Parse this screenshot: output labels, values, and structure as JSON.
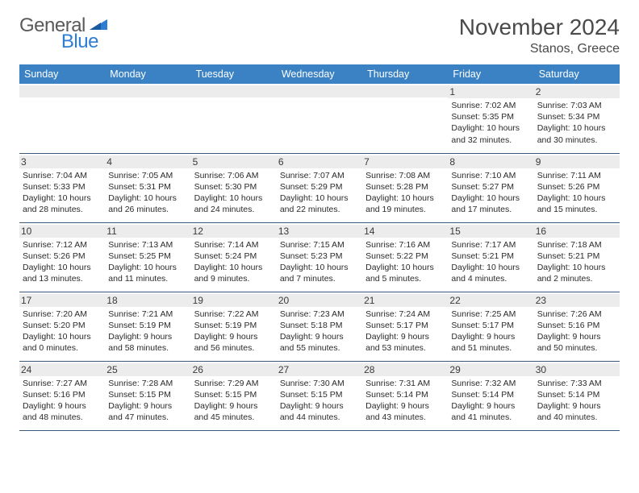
{
  "logo": {
    "text1": "General",
    "text2": "Blue"
  },
  "title": "November 2024",
  "location": "Stanos, Greece",
  "colors": {
    "header_bg": "#3b82c4",
    "header_fg": "#ffffff",
    "daynum_bg": "#ececec",
    "week_border": "#3b5a7a",
    "logo_gray": "#5a5a5a",
    "logo_blue": "#2d7dd2"
  },
  "weekdays": [
    "Sunday",
    "Monday",
    "Tuesday",
    "Wednesday",
    "Thursday",
    "Friday",
    "Saturday"
  ],
  "weeks": [
    [
      null,
      null,
      null,
      null,
      null,
      {
        "d": "1",
        "sr": "Sunrise: 7:02 AM",
        "ss": "Sunset: 5:35 PM",
        "dl1": "Daylight: 10 hours",
        "dl2": "and 32 minutes."
      },
      {
        "d": "2",
        "sr": "Sunrise: 7:03 AM",
        "ss": "Sunset: 5:34 PM",
        "dl1": "Daylight: 10 hours",
        "dl2": "and 30 minutes."
      }
    ],
    [
      {
        "d": "3",
        "sr": "Sunrise: 7:04 AM",
        "ss": "Sunset: 5:33 PM",
        "dl1": "Daylight: 10 hours",
        "dl2": "and 28 minutes."
      },
      {
        "d": "4",
        "sr": "Sunrise: 7:05 AM",
        "ss": "Sunset: 5:31 PM",
        "dl1": "Daylight: 10 hours",
        "dl2": "and 26 minutes."
      },
      {
        "d": "5",
        "sr": "Sunrise: 7:06 AM",
        "ss": "Sunset: 5:30 PM",
        "dl1": "Daylight: 10 hours",
        "dl2": "and 24 minutes."
      },
      {
        "d": "6",
        "sr": "Sunrise: 7:07 AM",
        "ss": "Sunset: 5:29 PM",
        "dl1": "Daylight: 10 hours",
        "dl2": "and 22 minutes."
      },
      {
        "d": "7",
        "sr": "Sunrise: 7:08 AM",
        "ss": "Sunset: 5:28 PM",
        "dl1": "Daylight: 10 hours",
        "dl2": "and 19 minutes."
      },
      {
        "d": "8",
        "sr": "Sunrise: 7:10 AM",
        "ss": "Sunset: 5:27 PM",
        "dl1": "Daylight: 10 hours",
        "dl2": "and 17 minutes."
      },
      {
        "d": "9",
        "sr": "Sunrise: 7:11 AM",
        "ss": "Sunset: 5:26 PM",
        "dl1": "Daylight: 10 hours",
        "dl2": "and 15 minutes."
      }
    ],
    [
      {
        "d": "10",
        "sr": "Sunrise: 7:12 AM",
        "ss": "Sunset: 5:26 PM",
        "dl1": "Daylight: 10 hours",
        "dl2": "and 13 minutes."
      },
      {
        "d": "11",
        "sr": "Sunrise: 7:13 AM",
        "ss": "Sunset: 5:25 PM",
        "dl1": "Daylight: 10 hours",
        "dl2": "and 11 minutes."
      },
      {
        "d": "12",
        "sr": "Sunrise: 7:14 AM",
        "ss": "Sunset: 5:24 PM",
        "dl1": "Daylight: 10 hours",
        "dl2": "and 9 minutes."
      },
      {
        "d": "13",
        "sr": "Sunrise: 7:15 AM",
        "ss": "Sunset: 5:23 PM",
        "dl1": "Daylight: 10 hours",
        "dl2": "and 7 minutes."
      },
      {
        "d": "14",
        "sr": "Sunrise: 7:16 AM",
        "ss": "Sunset: 5:22 PM",
        "dl1": "Daylight: 10 hours",
        "dl2": "and 5 minutes."
      },
      {
        "d": "15",
        "sr": "Sunrise: 7:17 AM",
        "ss": "Sunset: 5:21 PM",
        "dl1": "Daylight: 10 hours",
        "dl2": "and 4 minutes."
      },
      {
        "d": "16",
        "sr": "Sunrise: 7:18 AM",
        "ss": "Sunset: 5:21 PM",
        "dl1": "Daylight: 10 hours",
        "dl2": "and 2 minutes."
      }
    ],
    [
      {
        "d": "17",
        "sr": "Sunrise: 7:20 AM",
        "ss": "Sunset: 5:20 PM",
        "dl1": "Daylight: 10 hours",
        "dl2": "and 0 minutes."
      },
      {
        "d": "18",
        "sr": "Sunrise: 7:21 AM",
        "ss": "Sunset: 5:19 PM",
        "dl1": "Daylight: 9 hours",
        "dl2": "and 58 minutes."
      },
      {
        "d": "19",
        "sr": "Sunrise: 7:22 AM",
        "ss": "Sunset: 5:19 PM",
        "dl1": "Daylight: 9 hours",
        "dl2": "and 56 minutes."
      },
      {
        "d": "20",
        "sr": "Sunrise: 7:23 AM",
        "ss": "Sunset: 5:18 PM",
        "dl1": "Daylight: 9 hours",
        "dl2": "and 55 minutes."
      },
      {
        "d": "21",
        "sr": "Sunrise: 7:24 AM",
        "ss": "Sunset: 5:17 PM",
        "dl1": "Daylight: 9 hours",
        "dl2": "and 53 minutes."
      },
      {
        "d": "22",
        "sr": "Sunrise: 7:25 AM",
        "ss": "Sunset: 5:17 PM",
        "dl1": "Daylight: 9 hours",
        "dl2": "and 51 minutes."
      },
      {
        "d": "23",
        "sr": "Sunrise: 7:26 AM",
        "ss": "Sunset: 5:16 PM",
        "dl1": "Daylight: 9 hours",
        "dl2": "and 50 minutes."
      }
    ],
    [
      {
        "d": "24",
        "sr": "Sunrise: 7:27 AM",
        "ss": "Sunset: 5:16 PM",
        "dl1": "Daylight: 9 hours",
        "dl2": "and 48 minutes."
      },
      {
        "d": "25",
        "sr": "Sunrise: 7:28 AM",
        "ss": "Sunset: 5:15 PM",
        "dl1": "Daylight: 9 hours",
        "dl2": "and 47 minutes."
      },
      {
        "d": "26",
        "sr": "Sunrise: 7:29 AM",
        "ss": "Sunset: 5:15 PM",
        "dl1": "Daylight: 9 hours",
        "dl2": "and 45 minutes."
      },
      {
        "d": "27",
        "sr": "Sunrise: 7:30 AM",
        "ss": "Sunset: 5:15 PM",
        "dl1": "Daylight: 9 hours",
        "dl2": "and 44 minutes."
      },
      {
        "d": "28",
        "sr": "Sunrise: 7:31 AM",
        "ss": "Sunset: 5:14 PM",
        "dl1": "Daylight: 9 hours",
        "dl2": "and 43 minutes."
      },
      {
        "d": "29",
        "sr": "Sunrise: 7:32 AM",
        "ss": "Sunset: 5:14 PM",
        "dl1": "Daylight: 9 hours",
        "dl2": "and 41 minutes."
      },
      {
        "d": "30",
        "sr": "Sunrise: 7:33 AM",
        "ss": "Sunset: 5:14 PM",
        "dl1": "Daylight: 9 hours",
        "dl2": "and 40 minutes."
      }
    ]
  ]
}
